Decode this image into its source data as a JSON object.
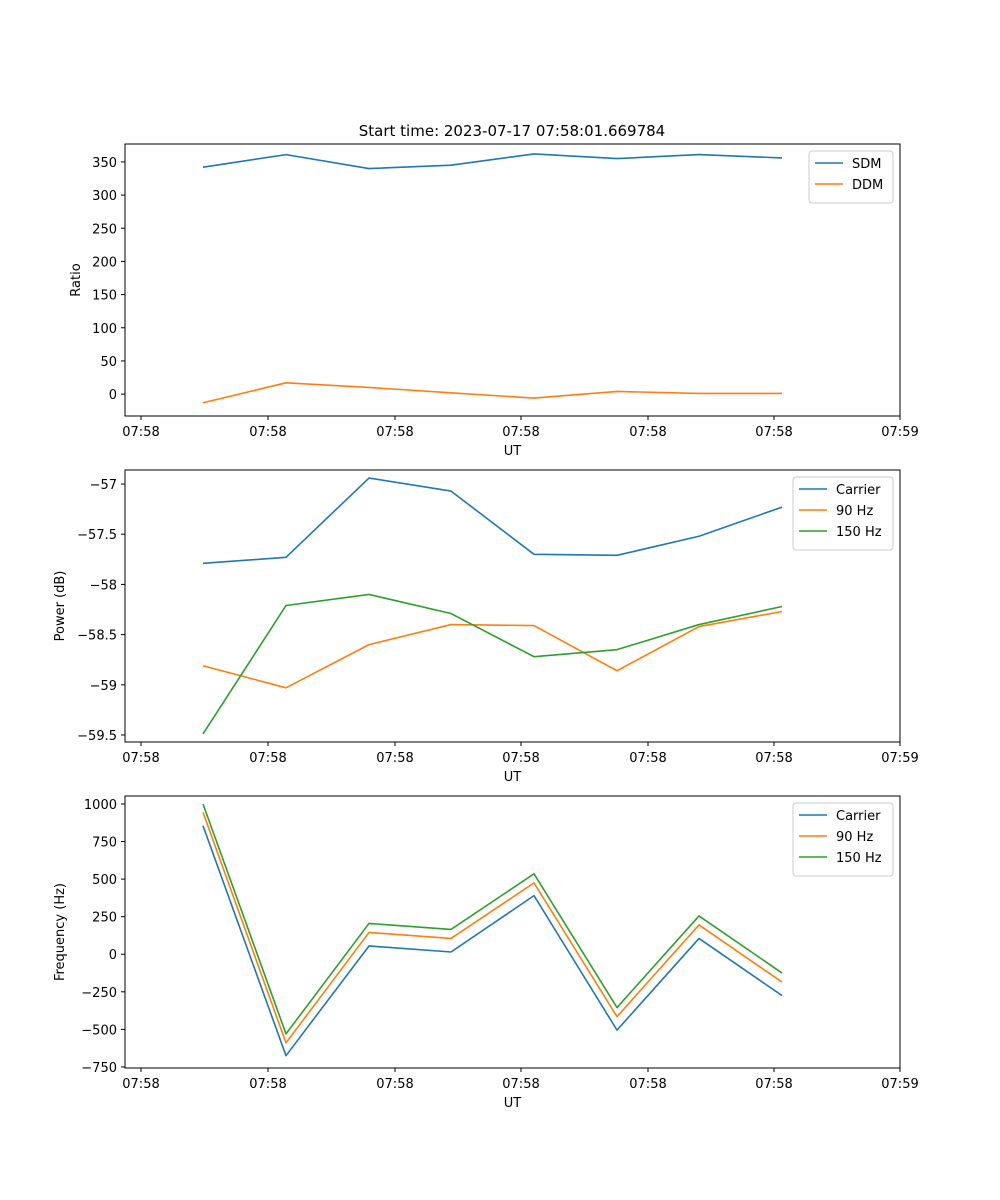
{
  "title": "Start time: 2023-07-17 07:58:01.669784",
  "chart_data": [
    {
      "type": "line",
      "title": "Start time: 2023-07-17 07:58:01.669784",
      "xlabel": "UT",
      "ylabel": "Ratio",
      "x_tick_labels": [
        "07:58",
        "07:58",
        "07:58",
        "07:58",
        "07:58",
        "07:58",
        "07:59"
      ],
      "y_ticks": [
        0,
        50,
        100,
        150,
        200,
        250,
        300,
        350
      ],
      "ylim": [
        -33,
        377
      ],
      "legend_position": "top-right",
      "series": [
        {
          "name": "SDM",
          "color": "#1f77b4",
          "values": [
            342,
            361,
            340,
            345,
            362,
            355,
            361,
            356
          ]
        },
        {
          "name": "DDM",
          "color": "#ff7f0e",
          "values": [
            -13,
            17,
            10,
            2,
            -6,
            4,
            1,
            1
          ]
        }
      ]
    },
    {
      "type": "line",
      "title": "",
      "xlabel": "UT",
      "ylabel": "Power (dB)",
      "x_tick_labels": [
        "07:58",
        "07:58",
        "07:58",
        "07:58",
        "07:58",
        "07:58",
        "07:59"
      ],
      "y_ticks": [
        -57.0,
        -57.5,
        -58.0,
        -58.5,
        -59.0,
        -59.5
      ],
      "ylim": [
        -59.57,
        -56.86
      ],
      "legend_position": "top-right",
      "series": [
        {
          "name": "Carrier",
          "color": "#1f77b4",
          "values": [
            -57.79,
            -57.73,
            -56.94,
            -57.07,
            -57.7,
            -57.71,
            -57.52,
            -57.23
          ]
        },
        {
          "name": "90 Hz",
          "color": "#ff7f0e",
          "values": [
            -58.81,
            -59.03,
            -58.6,
            -58.4,
            -58.41,
            -58.86,
            -58.42,
            -58.27
          ]
        },
        {
          "name": "150 Hz",
          "color": "#2ca02c",
          "values": [
            -59.49,
            -58.21,
            -58.1,
            -58.29,
            -58.72,
            -58.65,
            -58.4,
            -58.22
          ]
        }
      ]
    },
    {
      "type": "line",
      "title": "",
      "xlabel": "UT",
      "ylabel": "Frequency (Hz)",
      "x_tick_labels": [
        "07:58",
        "07:58",
        "07:58",
        "07:58",
        "07:58",
        "07:58",
        "07:59"
      ],
      "y_ticks": [
        1000,
        750,
        500,
        250,
        0,
        -250,
        -500,
        -750
      ],
      "ylim": [
        -757,
        1053
      ],
      "legend_position": "top-right",
      "series": [
        {
          "name": "Carrier",
          "color": "#1f77b4",
          "values": [
            855,
            -675,
            55,
            15,
            390,
            -505,
            105,
            -275
          ]
        },
        {
          "name": "90 Hz",
          "color": "#ff7f0e",
          "values": [
            945,
            -590,
            145,
            105,
            475,
            -415,
            195,
            -185
          ]
        },
        {
          "name": "150 Hz",
          "color": "#2ca02c",
          "values": [
            1000,
            -530,
            205,
            165,
            535,
            -355,
            255,
            -125
          ]
        }
      ]
    }
  ]
}
